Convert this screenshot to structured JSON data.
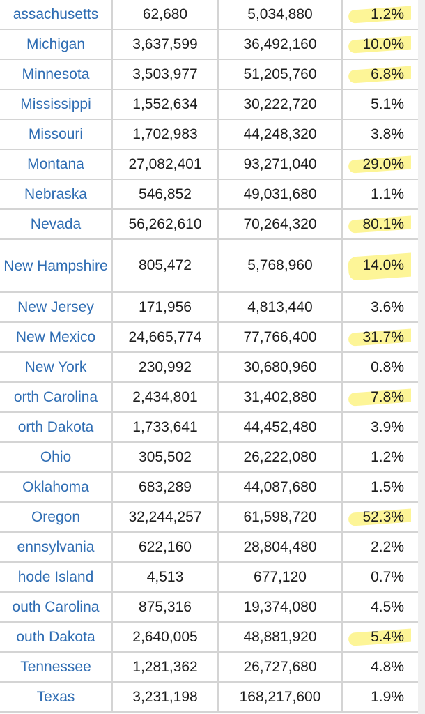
{
  "table": {
    "rows": [
      {
        "state": "assachusetts",
        "v1": "62,680",
        "v2": "5,034,880",
        "pct": "1.2%",
        "hl": true
      },
      {
        "state": "Michigan",
        "v1": "3,637,599",
        "v2": "36,492,160",
        "pct": "10.0%",
        "hl": true
      },
      {
        "state": "Minnesota",
        "v1": "3,503,977",
        "v2": "51,205,760",
        "pct": "6.8%",
        "hl": true
      },
      {
        "state": "Mississippi",
        "v1": "1,552,634",
        "v2": "30,222,720",
        "pct": "5.1%",
        "hl": false
      },
      {
        "state": "Missouri",
        "v1": "1,702,983",
        "v2": "44,248,320",
        "pct": "3.8%",
        "hl": false
      },
      {
        "state": "Montana",
        "v1": "27,082,401",
        "v2": "93,271,040",
        "pct": "29.0%",
        "hl": true
      },
      {
        "state": "Nebraska",
        "v1": "546,852",
        "v2": "49,031,680",
        "pct": "1.1%",
        "hl": false
      },
      {
        "state": "Nevada",
        "v1": "56,262,610",
        "v2": "70,264,320",
        "pct": "80.1%",
        "hl": true
      },
      {
        "state": "New Hampshire",
        "v1": "805,472",
        "v2": "5,768,960",
        "pct": "14.0%",
        "hl": true,
        "tall": true
      },
      {
        "state": "New Jersey",
        "v1": "171,956",
        "v2": "4,813,440",
        "pct": "3.6%",
        "hl": false
      },
      {
        "state": "New Mexico",
        "v1": "24,665,774",
        "v2": "77,766,400",
        "pct": "31.7%",
        "hl": true
      },
      {
        "state": "New York",
        "v1": "230,992",
        "v2": "30,680,960",
        "pct": "0.8%",
        "hl": false
      },
      {
        "state": "orth Carolina",
        "v1": "2,434,801",
        "v2": "31,402,880",
        "pct": "7.8%",
        "hl": true
      },
      {
        "state": "orth Dakota",
        "v1": "1,733,641",
        "v2": "44,452,480",
        "pct": "3.9%",
        "hl": false
      },
      {
        "state": "Ohio",
        "v1": "305,502",
        "v2": "26,222,080",
        "pct": "1.2%",
        "hl": false
      },
      {
        "state": "Oklahoma",
        "v1": "683,289",
        "v2": "44,087,680",
        "pct": "1.5%",
        "hl": false
      },
      {
        "state": "Oregon",
        "v1": "32,244,257",
        "v2": "61,598,720",
        "pct": "52.3%",
        "hl": true
      },
      {
        "state": "ennsylvania",
        "v1": "622,160",
        "v2": "28,804,480",
        "pct": "2.2%",
        "hl": false
      },
      {
        "state": "hode Island",
        "v1": "4,513",
        "v2": "677,120",
        "pct": "0.7%",
        "hl": false
      },
      {
        "state": "outh Carolina",
        "v1": "875,316",
        "v2": "19,374,080",
        "pct": "4.5%",
        "hl": false
      },
      {
        "state": "outh Dakota",
        "v1": "2,640,005",
        "v2": "48,881,920",
        "pct": "5.4%",
        "hl": true
      },
      {
        "state": "Tennessee",
        "v1": "1,281,362",
        "v2": "26,727,680",
        "pct": "4.8%",
        "hl": false
      },
      {
        "state": "Texas",
        "v1": "3,231,198",
        "v2": "168,217,600",
        "pct": "1.9%",
        "hl": false
      }
    ]
  },
  "colors": {
    "link": "#2f6db3",
    "highlight": "#fdf27a",
    "border": "#d4d4d4"
  }
}
